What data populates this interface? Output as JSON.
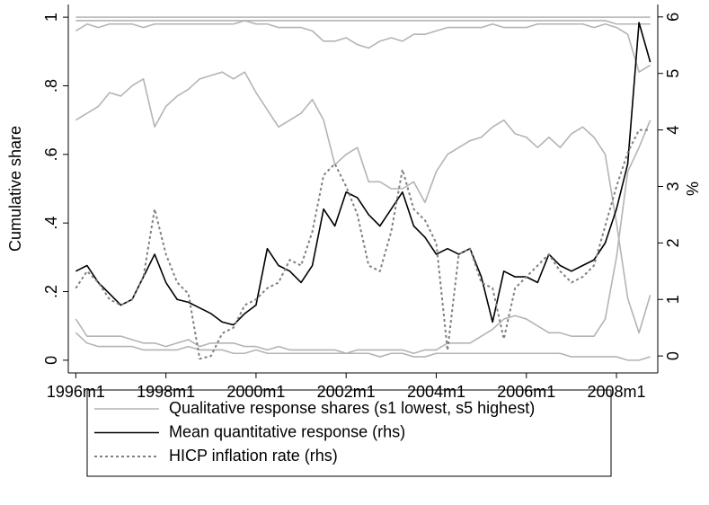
{
  "chart_data": {
    "type": "line",
    "y_label": "Cumulative share",
    "y2_label": "%",
    "x": [
      432,
      435,
      438,
      441,
      444,
      447,
      450,
      453,
      456,
      459,
      462,
      465,
      468,
      471,
      474,
      477,
      480,
      483,
      486,
      489,
      492,
      495,
      498,
      501,
      504,
      507,
      510,
      513,
      516,
      519,
      522,
      525,
      528,
      531,
      534,
      537,
      540,
      543,
      546,
      549,
      552,
      555,
      558,
      561,
      564,
      567,
      570,
      573,
      576,
      579,
      582,
      585
    ],
    "xlim": [
      430,
      587
    ],
    "xticks": [
      {
        "value": 432,
        "label": "1996m1"
      },
      {
        "value": 456,
        "label": "1998m1"
      },
      {
        "value": 480,
        "label": "2000m1"
      },
      {
        "value": 504,
        "label": "2002m1"
      },
      {
        "value": 528,
        "label": "2004m1"
      },
      {
        "value": 552,
        "label": "2006m1"
      },
      {
        "value": 576,
        "label": "2008m1"
      }
    ],
    "ylim": [
      -0.037,
      1.037
    ],
    "yticks": [
      0,
      {
        "value": 0.2,
        "label": ".2"
      },
      {
        "value": 0.4,
        "label": ".4"
      },
      {
        "value": 0.6,
        "label": ".6"
      },
      {
        "value": 0.8,
        "label": ".8"
      },
      1
    ],
    "y2lim": [
      -0.3,
      6.22
    ],
    "y2ticks": [
      0,
      1,
      2,
      3,
      4,
      5,
      6
    ],
    "series": [
      {
        "name": "Qualitative response shares (s1 lowest, s5 highest)",
        "color": "#b4b4b4",
        "style": "solid",
        "values": [
          0.08,
          0.05,
          0.04,
          0.04,
          0.04,
          0.04,
          0.03,
          0.03,
          0.03,
          0.03,
          0.04,
          0.03,
          0.03,
          0.03,
          0.02,
          0.02,
          0.03,
          0.02,
          0.02,
          0.02,
          0.02,
          0.02,
          0.02,
          0.02,
          0.02,
          0.02,
          0.02,
          0.01,
          0.02,
          0.02,
          0.01,
          0.01,
          0.02,
          0.02,
          0.02,
          0.02,
          0.02,
          0.02,
          0.02,
          0.02,
          0.02,
          0.02,
          0.02,
          0.02,
          0.01,
          0.01,
          0.01,
          0.01,
          0.01,
          0.0,
          0.0,
          0.01
        ]
      },
      {
        "color": "#b4b4b4",
        "style": "solid",
        "values": [
          0.12,
          0.07,
          0.07,
          0.07,
          0.07,
          0.06,
          0.05,
          0.05,
          0.04,
          0.05,
          0.06,
          0.04,
          0.05,
          0.05,
          0.05,
          0.04,
          0.04,
          0.03,
          0.04,
          0.03,
          0.03,
          0.03,
          0.03,
          0.03,
          0.02,
          0.03,
          0.03,
          0.03,
          0.03,
          0.03,
          0.02,
          0.03,
          0.03,
          0.05,
          0.05,
          0.05,
          0.07,
          0.09,
          0.12,
          0.13,
          0.12,
          0.1,
          0.08,
          0.08,
          0.07,
          0.07,
          0.07,
          0.12,
          0.3,
          0.55,
          0.62,
          0.7
        ]
      },
      {
        "color": "#b4b4b4",
        "style": "solid",
        "values": [
          0.7,
          0.72,
          0.74,
          0.78,
          0.77,
          0.8,
          0.82,
          0.68,
          0.74,
          0.77,
          0.79,
          0.82,
          0.83,
          0.84,
          0.82,
          0.84,
          0.78,
          0.73,
          0.68,
          0.7,
          0.72,
          0.76,
          0.7,
          0.57,
          0.6,
          0.62,
          0.52,
          0.52,
          0.5,
          0.5,
          0.52,
          0.46,
          0.55,
          0.6,
          0.62,
          0.64,
          0.65,
          0.68,
          0.7,
          0.66,
          0.65,
          0.62,
          0.65,
          0.62,
          0.66,
          0.68,
          0.65,
          0.6,
          0.4,
          0.18,
          0.08,
          0.19
        ]
      },
      {
        "color": "#b4b4b4",
        "style": "solid",
        "values": [
          0.96,
          0.98,
          0.97,
          0.98,
          0.98,
          0.98,
          0.97,
          0.98,
          0.98,
          0.98,
          0.98,
          0.98,
          0.98,
          0.98,
          0.98,
          0.99,
          0.98,
          0.98,
          0.97,
          0.97,
          0.97,
          0.96,
          0.93,
          0.93,
          0.94,
          0.92,
          0.91,
          0.93,
          0.94,
          0.93,
          0.95,
          0.95,
          0.96,
          0.97,
          0.97,
          0.97,
          0.97,
          0.98,
          0.97,
          0.97,
          0.97,
          0.98,
          0.98,
          0.98,
          0.98,
          0.98,
          0.97,
          0.98,
          0.97,
          0.95,
          0.84,
          0.86
        ]
      },
      {
        "color": "#b4b4b4",
        "style": "solid",
        "values": [
          0.99,
          0.99,
          0.99,
          0.99,
          0.99,
          0.99,
          0.99,
          0.99,
          0.99,
          0.99,
          0.99,
          0.99,
          0.99,
          0.99,
          0.99,
          0.99,
          0.99,
          0.99,
          0.99,
          0.99,
          0.99,
          0.99,
          0.99,
          0.99,
          0.99,
          0.99,
          0.99,
          0.99,
          0.99,
          0.99,
          0.99,
          0.99,
          0.99,
          0.99,
          0.99,
          0.99,
          0.99,
          0.99,
          0.99,
          0.99,
          0.99,
          0.99,
          0.99,
          0.99,
          0.99,
          0.99,
          0.99,
          0.99,
          0.98,
          0.98,
          0.98,
          0.98
        ]
      },
      {
        "color": "#b4b4b4",
        "style": "solid",
        "values": [
          1,
          1,
          1,
          1,
          1,
          1,
          1,
          1,
          1,
          1,
          1,
          1,
          1,
          1,
          1,
          1,
          1,
          1,
          1,
          1,
          1,
          1,
          1,
          1,
          1,
          1,
          1,
          1,
          1,
          1,
          1,
          1,
          1,
          1,
          1,
          1,
          1,
          1,
          1,
          1,
          1,
          1,
          1,
          1,
          1,
          1,
          1,
          1,
          1,
          1,
          1,
          1
        ]
      },
      {
        "name": "Mean quantitative response (rhs)",
        "color": "#000000",
        "style": "solid",
        "axis": "y2",
        "values": [
          1.5,
          1.6,
          1.3,
          1.1,
          0.9,
          1.0,
          1.4,
          1.8,
          1.3,
          1.0,
          0.95,
          0.85,
          0.75,
          0.6,
          0.55,
          0.75,
          0.9,
          1.9,
          1.6,
          1.5,
          1.3,
          1.6,
          2.6,
          2.3,
          2.9,
          2.8,
          2.5,
          2.3,
          2.6,
          2.9,
          2.3,
          2.1,
          1.8,
          1.9,
          1.8,
          1.9,
          1.4,
          0.6,
          1.5,
          1.4,
          1.4,
          1.3,
          1.8,
          1.6,
          1.5,
          1.6,
          1.7,
          2.0,
          2.6,
          3.4,
          5.9,
          5.2
        ]
      },
      {
        "name": "HICP inflation rate (rhs)",
        "color": "#808080",
        "style": "dotted",
        "axis": "y2",
        "values": [
          1.2,
          1.5,
          1.3,
          1.0,
          0.9,
          1.0,
          1.4,
          2.6,
          1.8,
          1.3,
          1.1,
          -0.05,
          0.0,
          0.4,
          0.5,
          0.9,
          1.0,
          1.2,
          1.3,
          1.7,
          1.6,
          2.2,
          3.2,
          3.4,
          3.0,
          2.5,
          1.6,
          1.5,
          2.2,
          3.3,
          2.6,
          2.4,
          2.0,
          0.1,
          1.8,
          1.9,
          1.3,
          1.2,
          0.3,
          1.2,
          1.4,
          1.6,
          1.8,
          1.5,
          1.3,
          1.4,
          1.6,
          2.3,
          3.0,
          3.6,
          4.0,
          4.0
        ]
      }
    ]
  }
}
